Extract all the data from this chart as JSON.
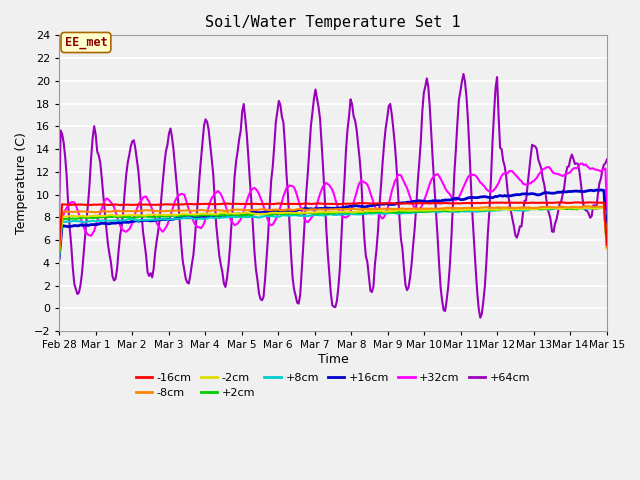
{
  "title": "Soil/Water Temperature Set 1",
  "xlabel": "Time",
  "ylabel": "Temperature (C)",
  "annotation_text": "EE_met",
  "ylim": [
    -2,
    24
  ],
  "yticks": [
    -2,
    0,
    2,
    4,
    6,
    8,
    10,
    12,
    14,
    16,
    18,
    20,
    22,
    24
  ],
  "bg_color": "#f0f0f0",
  "plot_bg_color": "#f0f0f0",
  "grid_color": "#ffffff",
  "series_colors": {
    "-16cm": "#ff0000",
    "-8cm": "#ff8800",
    "-2cm": "#dddd00",
    "+2cm": "#00cc00",
    "+8cm": "#00cccc",
    "+16cm": "#0000cc",
    "+32cm": "#ff00ff",
    "+64cm": "#9900bb"
  },
  "x_tick_labels": [
    "Feb 28",
    "Mar 1",
    "Mar 2",
    "Mar 3",
    "Mar 4",
    "Mar 5",
    "Mar 6",
    "Mar 7",
    "Mar 8",
    "Mar 9",
    "Mar 10",
    "Mar 11",
    "Mar 12",
    "Mar 13",
    "Mar 14",
    "Mar 15"
  ],
  "legend_order": [
    "-16cm",
    "-8cm",
    "-2cm",
    "+2cm",
    "+8cm",
    "+16cm",
    "+32cm",
    "+64cm"
  ]
}
